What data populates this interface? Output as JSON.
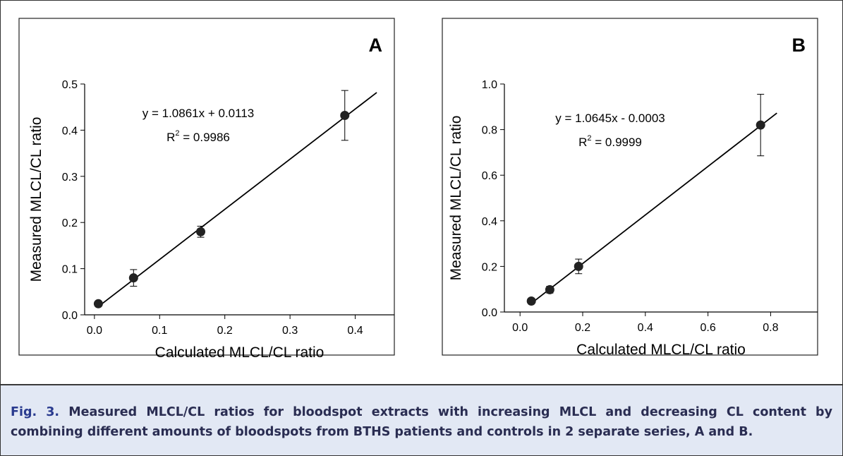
{
  "chart_data": [
    {
      "type": "scatter",
      "panel_label": "A",
      "xlabel": "Calculated MLCL/CL ratio",
      "ylabel": "Measured MLCL/CL ratio",
      "xlim": [
        -0.015,
        0.46
      ],
      "ylim": [
        0,
        0.5
      ],
      "x_ticks": [
        0.0,
        0.1,
        0.2,
        0.3,
        0.4
      ],
      "y_ticks": [
        0.0,
        0.1,
        0.2,
        0.3,
        0.4,
        0.5
      ],
      "tick_decimals": 1,
      "grid": false,
      "x": [
        0.006,
        0.06,
        0.163,
        0.384
      ],
      "y": [
        0.024,
        0.08,
        0.18,
        0.432
      ],
      "y_err": [
        0.004,
        0.018,
        0.012,
        0.054
      ],
      "trendline": {
        "slope": 1.0861,
        "intercept": 0.0113,
        "x_range": [
          0.006,
          0.433
        ]
      },
      "equation": "y = 1.0861x + 0.0113",
      "r2_label": "R",
      "r2_sup": "2",
      "r2_value": " = 0.9986"
    },
    {
      "type": "scatter",
      "panel_label": "B",
      "xlabel": "Calculated MLCL/CL ratio",
      "ylabel": "Measured MLCL/CL ratio",
      "xlim": [
        -0.05,
        0.95
      ],
      "ylim": [
        0,
        1.0
      ],
      "x_ticks": [
        0.0,
        0.2,
        0.4,
        0.6,
        0.8
      ],
      "y_ticks": [
        0.0,
        0.2,
        0.4,
        0.6,
        0.8,
        1.0
      ],
      "tick_decimals": 1,
      "grid": false,
      "x": [
        0.036,
        0.095,
        0.187,
        0.768
      ],
      "y": [
        0.048,
        0.098,
        0.2,
        0.82
      ],
      "y_err": [
        0.006,
        0.015,
        0.032,
        0.135
      ],
      "trendline": {
        "slope": 1.0645,
        "intercept": -0.0003,
        "x_range": [
          0.036,
          0.82
        ]
      },
      "equation": "y = 1.0645x - 0.0003",
      "r2_label": "R",
      "r2_sup": "2",
      "r2_value": " = 0.9999"
    }
  ],
  "caption": {
    "label": "Fig. 3.",
    "text": "Measured MLCL/CL ratios for bloodspot extracts with increasing MLCL and decreasing CL content by combining different amounts of bloodspots from BTHS patients and controls in 2 separate series, A and B."
  }
}
